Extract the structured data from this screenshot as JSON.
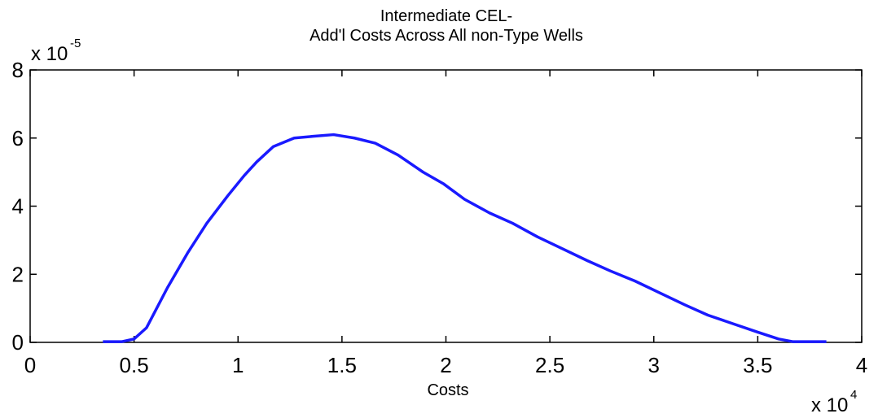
{
  "chart_data": {
    "type": "line",
    "title": [
      "Intermediate CEL-",
      "Add'l Costs Across All non-Type Wells"
    ],
    "xlabel": "Costs",
    "x_multiplier": {
      "base": "x 10",
      "exponent": "4"
    },
    "y_multiplier": {
      "base": "x 10",
      "exponent": "-5"
    },
    "x": [
      0.35,
      0.44,
      0.5,
      0.56,
      0.66,
      0.76,
      0.85,
      0.95,
      1.03,
      1.09,
      1.17,
      1.27,
      1.36,
      1.46,
      1.56,
      1.66,
      1.77,
      1.89,
      1.99,
      2.09,
      2.21,
      2.32,
      2.44,
      2.56,
      2.68,
      2.79,
      2.91,
      3.03,
      3.15,
      3.26,
      3.38,
      3.5,
      3.6,
      3.67,
      3.83
    ],
    "series": [
      {
        "color": "#1a1aff",
        "values": [
          0.02,
          0.02,
          0.1,
          0.43,
          1.6,
          2.65,
          3.5,
          4.3,
          4.9,
          5.3,
          5.75,
          6.0,
          6.05,
          6.1,
          6.0,
          5.85,
          5.5,
          5.0,
          4.65,
          4.2,
          3.8,
          3.5,
          3.1,
          2.75,
          2.4,
          2.1,
          1.8,
          1.45,
          1.1,
          0.8,
          0.55,
          0.3,
          0.1,
          0.02,
          0.02
        ]
      }
    ],
    "xlim": [
      0,
      4
    ],
    "xticks": [
      0,
      0.5,
      1,
      1.5,
      2,
      2.5,
      3,
      3.5,
      4
    ],
    "ylim": [
      0,
      8
    ],
    "yticks": [
      0,
      2,
      4,
      6,
      8
    ]
  }
}
